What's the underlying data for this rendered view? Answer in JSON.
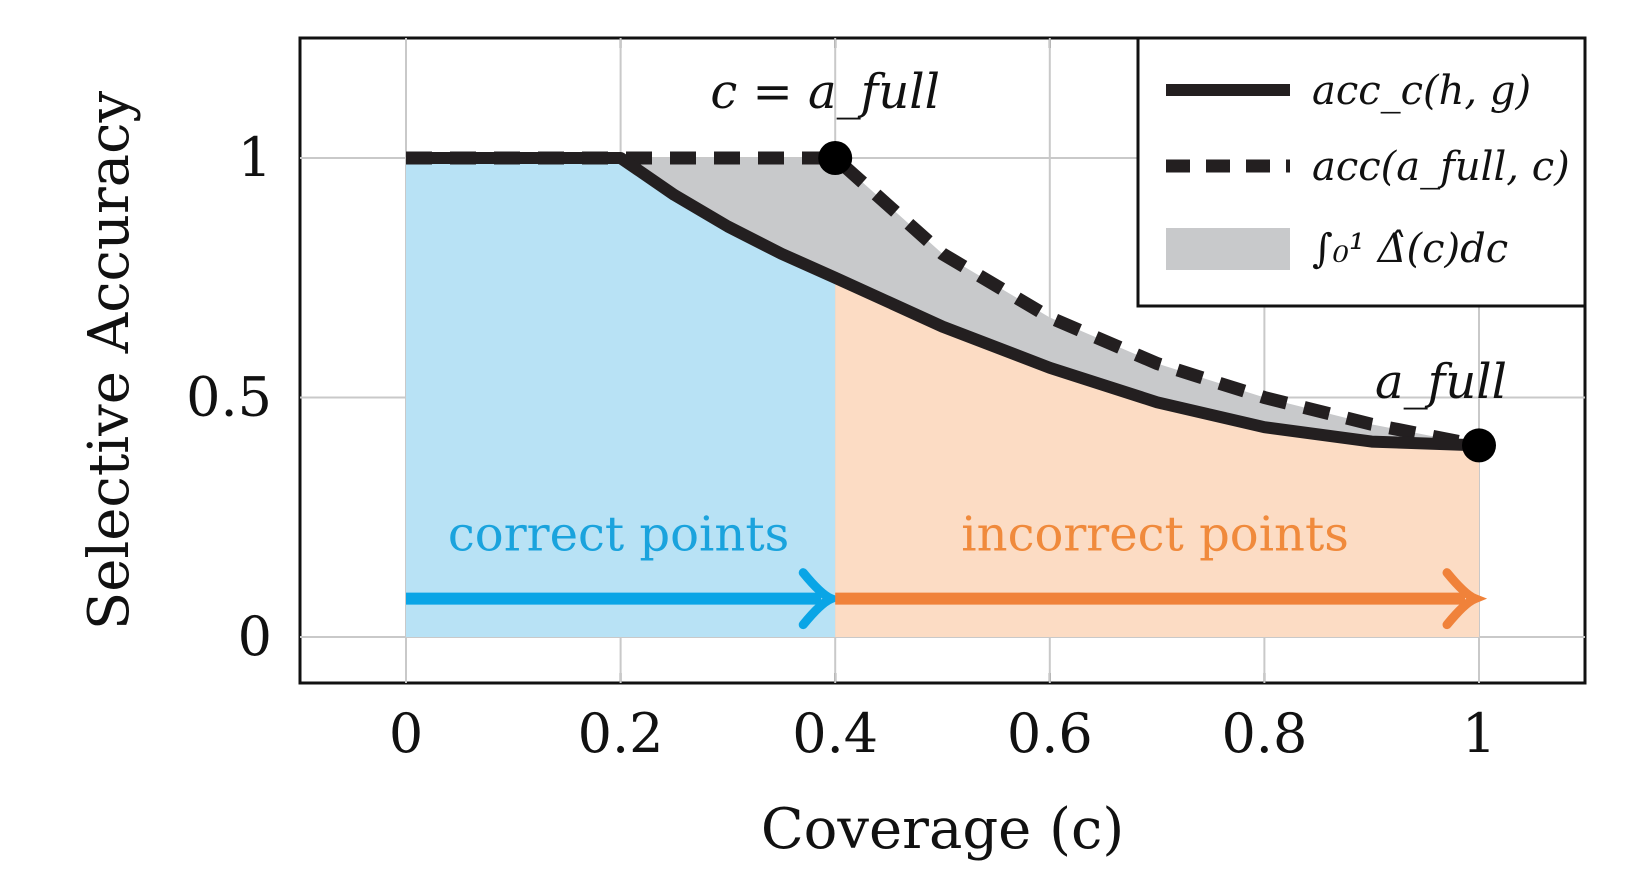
{
  "chart_data": {
    "type": "line",
    "xlabel": "Coverage (c)",
    "ylabel": "Selective Accuracy",
    "xlim": [
      -0.1,
      1.1
    ],
    "ylim": [
      -0.1,
      1.25
    ],
    "xticks": [
      "0",
      "0.2",
      "0.4",
      "0.6",
      "0.8",
      "1"
    ],
    "yticks": [
      "0",
      "0.5",
      "1"
    ],
    "grid": true,
    "legend_position": "top-right",
    "series": [
      {
        "name": "acc_c(h, g)",
        "style": "solid",
        "color": "#231f20",
        "x": [
          0,
          0.2,
          0.25,
          0.3,
          0.35,
          0.4,
          0.5,
          0.6,
          0.7,
          0.8,
          0.9,
          1.0
        ],
        "y": [
          1.0,
          1.0,
          0.923,
          0.857,
          0.8,
          0.75,
          0.648,
          0.562,
          0.49,
          0.438,
          0.408,
          0.4
        ]
      },
      {
        "name": "acc(a_full, c)",
        "style": "dashed",
        "color": "#231f20",
        "x": [
          0,
          0.4,
          0.5,
          0.6,
          0.7,
          0.8,
          0.9,
          1.0
        ],
        "y": [
          1.0,
          1.0,
          0.8,
          0.667,
          0.571,
          0.5,
          0.444,
          0.4
        ]
      }
    ],
    "shaded_gap_legend": "∫₀¹ Δ̂(c)dc",
    "points": [
      {
        "x": 0.4,
        "y": 1.0,
        "label": "c = a_full"
      },
      {
        "x": 1.0,
        "y": 0.4,
        "label": "a_full"
      }
    ],
    "regions": [
      {
        "label": "correct points",
        "from": 0,
        "to": 0.4,
        "color": "#b8e2f5",
        "arrow_color": "#0aa5e6",
        "text_color": "#1aa3dd"
      },
      {
        "label": "incorrect points",
        "from": 0.4,
        "to": 1.0,
        "color": "#fcdcc4",
        "arrow_color": "#f0823a",
        "text_color": "#f08a3c"
      }
    ],
    "gap_color": "#c8c9cb",
    "arrow_y": 0.08
  }
}
